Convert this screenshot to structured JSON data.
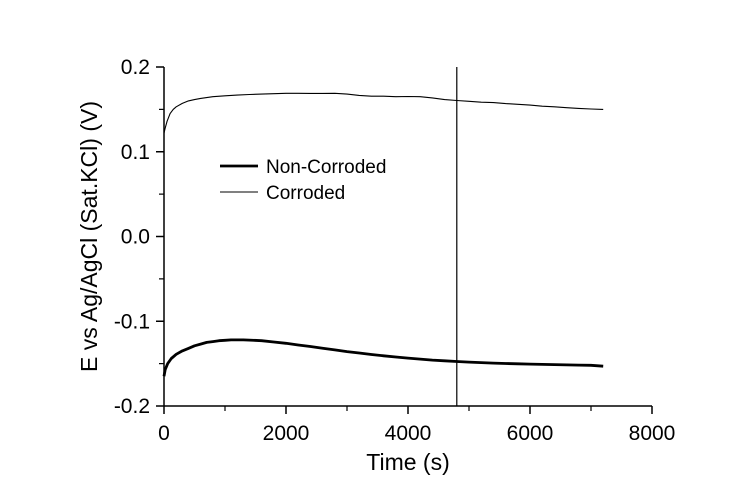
{
  "chart_data": {
    "type": "line",
    "title": "",
    "xlabel": "Time (s)",
    "ylabel": "E vs Ag/AgCl (Sat.KCl) (V)",
    "xlim": [
      0,
      8000
    ],
    "ylim": [
      -0.2,
      0.2
    ],
    "x_ticks": [
      0,
      2000,
      4000,
      6000,
      8000
    ],
    "x_tick_labels": [
      "0",
      "2000",
      "4000",
      "6000",
      "8000"
    ],
    "y_ticks": [
      -0.2,
      -0.1,
      0.0,
      0.1,
      0.2
    ],
    "y_tick_labels": [
      "-0.2",
      "-0.1",
      "0.0",
      "0.1",
      "0.2"
    ],
    "grid": false,
    "legend_position": "upper-left",
    "vertical_marker_x": 4800,
    "series": [
      {
        "name": "Non-Corroded",
        "color": "#000000",
        "style": "thick",
        "x": [
          0,
          20,
          60,
          120,
          200,
          300,
          400,
          500,
          600,
          700,
          800,
          900,
          1000,
          1100,
          1200,
          1300,
          1400,
          1600,
          1800,
          2000,
          2200,
          2400,
          2600,
          2800,
          3000,
          3200,
          3400,
          3600,
          3800,
          4000,
          4200,
          4400,
          4600,
          4800,
          5000,
          5200,
          5400,
          5600,
          5800,
          6000,
          6200,
          6400,
          6600,
          6800,
          7000,
          7200
        ],
        "values": [
          -0.165,
          -0.157,
          -0.15,
          -0.144,
          -0.139,
          -0.135,
          -0.132,
          -0.129,
          -0.127,
          -0.125,
          -0.124,
          -0.123,
          -0.1225,
          -0.122,
          -0.122,
          -0.122,
          -0.1222,
          -0.123,
          -0.1245,
          -0.126,
          -0.128,
          -0.1298,
          -0.1318,
          -0.1338,
          -0.1358,
          -0.1375,
          -0.1392,
          -0.1408,
          -0.1422,
          -0.1435,
          -0.1447,
          -0.1458,
          -0.1467,
          -0.1475,
          -0.1482,
          -0.1488,
          -0.1494,
          -0.1498,
          -0.1502,
          -0.1506,
          -0.1509,
          -0.1512,
          -0.1515,
          -0.1517,
          -0.152,
          -0.153
        ]
      },
      {
        "name": "Corroded",
        "color": "#000000",
        "style": "thin",
        "x": [
          0,
          20,
          50,
          100,
          150,
          200,
          300,
          400,
          500,
          600,
          800,
          1000,
          1200,
          1400,
          1600,
          1800,
          2000,
          2200,
          2400,
          2600,
          2800,
          3000,
          3200,
          3400,
          3600,
          3800,
          4000,
          4200,
          4400,
          4600,
          4800,
          5000,
          5200,
          5400,
          5600,
          5800,
          6000,
          6200,
          6400,
          6600,
          6800,
          7000,
          7200
        ],
        "values": [
          0.122,
          0.128,
          0.136,
          0.145,
          0.15,
          0.153,
          0.157,
          0.16,
          0.1615,
          0.163,
          0.165,
          0.166,
          0.1668,
          0.1675,
          0.168,
          0.1685,
          0.169,
          0.169,
          0.1688,
          0.1688,
          0.169,
          0.168,
          0.1665,
          0.1655,
          0.1655,
          0.165,
          0.1652,
          0.165,
          0.1635,
          0.1615,
          0.1605,
          0.1595,
          0.1585,
          0.158,
          0.1568,
          0.156,
          0.155,
          0.1538,
          0.153,
          0.152,
          0.1512,
          0.1505,
          0.15
        ]
      }
    ]
  }
}
